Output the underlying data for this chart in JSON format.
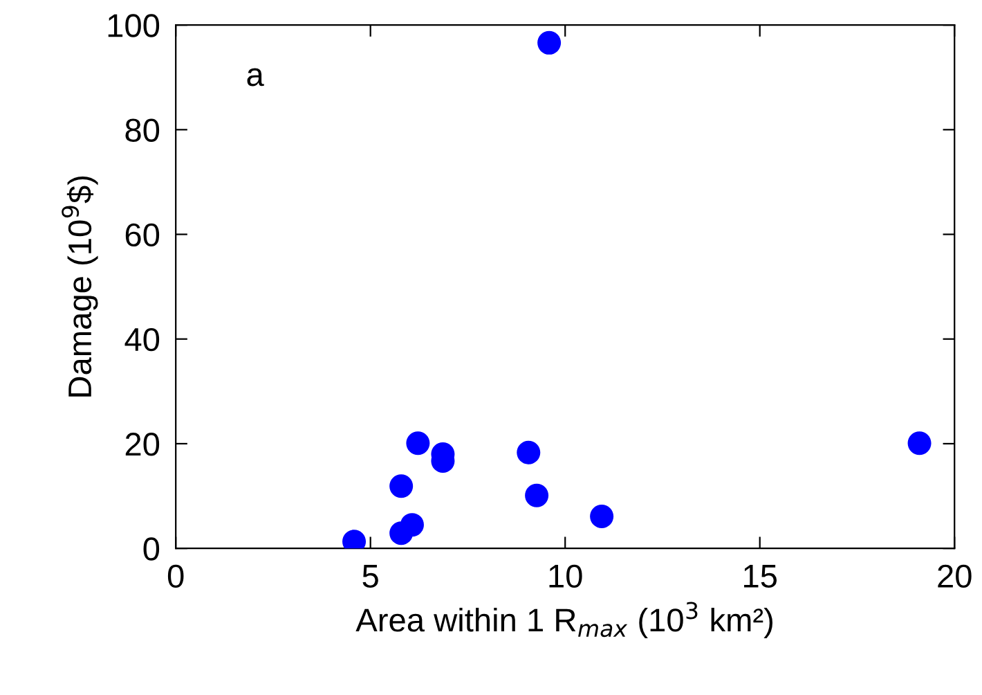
{
  "chart_data": {
    "type": "scatter",
    "xlabel": "Area within 1 R$_{max}$ (10$^{3}$ km²)",
    "ylabel": "Damage (10$^{9}$$)",
    "annotations": [
      "a"
    ],
    "series": [
      {
        "color": "#0000ff",
        "x": [
          4.58,
          5.79,
          5.79,
          6.07,
          6.22,
          6.86,
          6.86,
          9.06,
          9.27,
          9.59,
          10.94,
          19.1
        ],
        "values": [
          1.3,
          11.9,
          2.9,
          4.5,
          20.1,
          16.7,
          18.0,
          18.3,
          10.1,
          96.6,
          6.1,
          20.1
        ]
      }
    ],
    "xlim": [
      0,
      20
    ],
    "xticks": [
      0,
      5,
      10,
      15,
      20
    ],
    "ylim": [
      0,
      100
    ],
    "yticks": [
      0,
      20,
      40,
      60,
      80,
      100
    ],
    "marker": "circle",
    "grid": false,
    "legend": false
  }
}
